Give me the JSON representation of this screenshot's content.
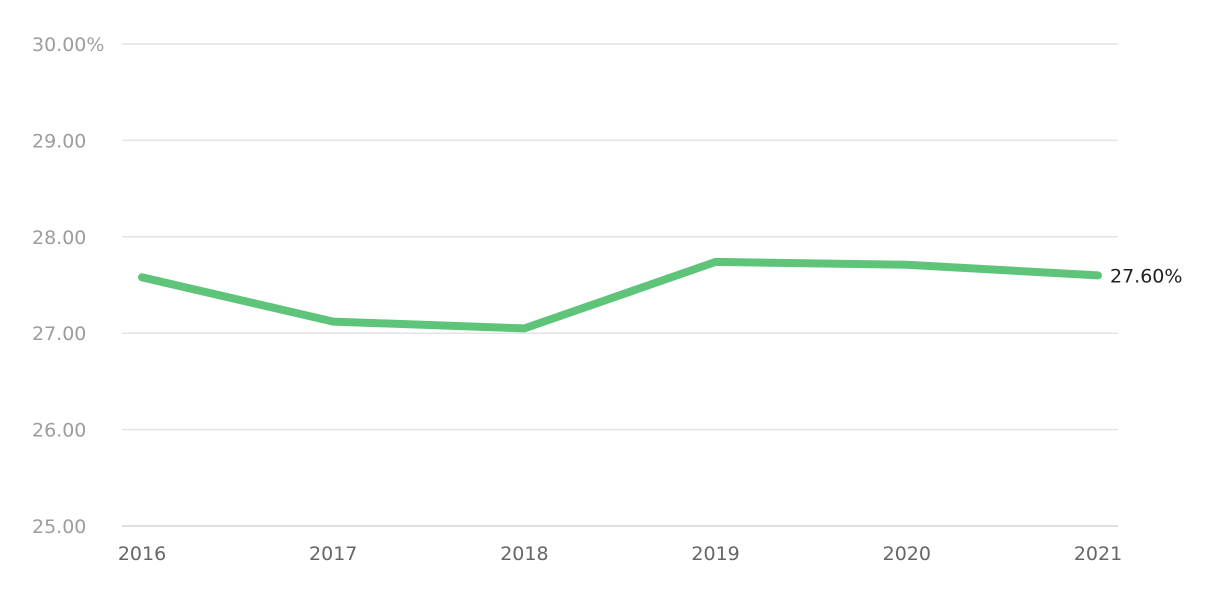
{
  "chart_data": {
    "type": "line",
    "title": "",
    "xlabel": "",
    "ylabel": "",
    "categories": [
      "2016",
      "2017",
      "2018",
      "2019",
      "2020",
      "2021"
    ],
    "series": [
      {
        "values": [
          27.58,
          27.12,
          27.05,
          27.74,
          27.71,
          27.6
        ],
        "color": "#5ec47a"
      }
    ],
    "ylim": [
      25,
      30
    ],
    "yticks": [
      {
        "value": 30,
        "label": "30.00%"
      },
      {
        "value": 29,
        "label": "29.00"
      },
      {
        "value": 28,
        "label": "28.00"
      },
      {
        "value": 27,
        "label": "27.00"
      },
      {
        "value": 26,
        "label": "26.00"
      },
      {
        "value": 25,
        "label": "25.00"
      }
    ],
    "end_label": "27.60%",
    "grid": true,
    "legend": "none"
  }
}
